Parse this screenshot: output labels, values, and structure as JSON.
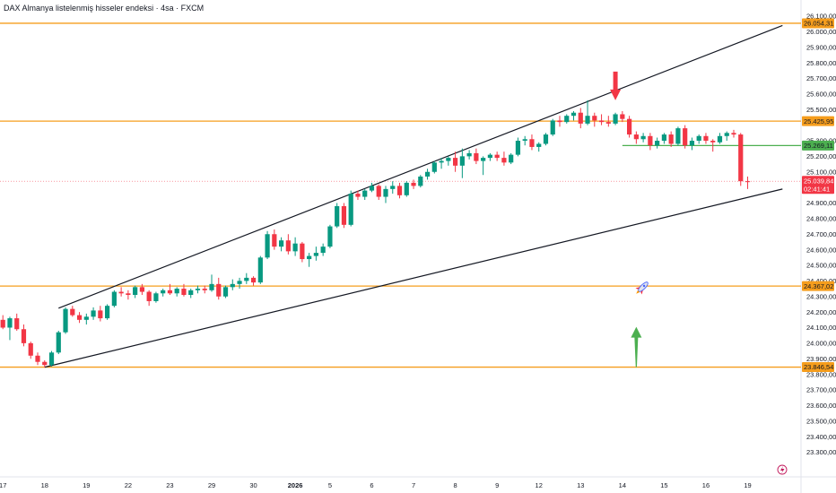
{
  "header": {
    "title": "DAX Almanya listelenmiş hisseler endeksi · 4sa · FXCM"
  },
  "chart_data": {
    "type": "candlestick",
    "title": "DAX Almanya listelenmiş hisseler endeksi · 4sa · FXCM",
    "ylim": [
      23270,
      26120
    ],
    "y_ticks": [
      {
        "v": 26100,
        "label": "26.100,00"
      },
      {
        "v": 26000,
        "label": "26.000,00"
      },
      {
        "v": 25900,
        "label": "25.900,00"
      },
      {
        "v": 25800,
        "label": "25.800,00"
      },
      {
        "v": 25700,
        "label": "25.700,00"
      },
      {
        "v": 25600,
        "label": "25.600,00"
      },
      {
        "v": 25500,
        "label": "25.500,00"
      },
      {
        "v": 25300,
        "label": "25.300,00"
      },
      {
        "v": 25200,
        "label": "25.200,00"
      },
      {
        "v": 25100,
        "label": "25.100,00"
      },
      {
        "v": 24900,
        "label": "24.900,00"
      },
      {
        "v": 24800,
        "label": "24.800,00"
      },
      {
        "v": 24700,
        "label": "24.700,00"
      },
      {
        "v": 24600,
        "label": "24.600,00"
      },
      {
        "v": 24500,
        "label": "24.500,00"
      },
      {
        "v": 24400,
        "label": "24.400,00"
      },
      {
        "v": 24300,
        "label": "24.300,00"
      },
      {
        "v": 24200,
        "label": "24.200,00"
      },
      {
        "v": 24100,
        "label": "24.100,00"
      },
      {
        "v": 24000,
        "label": "24.000,00"
      },
      {
        "v": 23900,
        "label": "23.900,00"
      },
      {
        "v": 23800,
        "label": "23.800,00"
      },
      {
        "v": 23700,
        "label": "23.700,00"
      },
      {
        "v": 23600,
        "label": "23.600,00"
      },
      {
        "v": 23500,
        "label": "23.500,00"
      },
      {
        "v": 23400,
        "label": "23.400,00"
      },
      {
        "v": 23300,
        "label": "23.300,00"
      }
    ],
    "x_ticks": [
      {
        "i": 0,
        "label": "17"
      },
      {
        "i": 6,
        "label": "18"
      },
      {
        "i": 12,
        "label": "19"
      },
      {
        "i": 18,
        "label": "22"
      },
      {
        "i": 24,
        "label": "23"
      },
      {
        "i": 30,
        "label": "29"
      },
      {
        "i": 36,
        "label": "30"
      },
      {
        "i": 42,
        "label": "2026",
        "bold": true
      },
      {
        "i": 47,
        "label": "5"
      },
      {
        "i": 53,
        "label": "6"
      },
      {
        "i": 59,
        "label": "7"
      },
      {
        "i": 65,
        "label": "8"
      },
      {
        "i": 71,
        "label": "9"
      },
      {
        "i": 77,
        "label": "12"
      },
      {
        "i": 83,
        "label": "13"
      },
      {
        "i": 89,
        "label": "14"
      },
      {
        "i": 95,
        "label": "15"
      },
      {
        "i": 101,
        "label": "16"
      },
      {
        "i": 107,
        "label": "19"
      }
    ],
    "levels": [
      {
        "price": 26054.31,
        "label": "26.054,31",
        "color": "#f59d1d"
      },
      {
        "price": 25425.95,
        "label": "25.425,95",
        "color": "#f59d1d"
      },
      {
        "price": 24367.02,
        "label": "24.367,02",
        "color": "#f59d1d"
      },
      {
        "price": 23846.54,
        "label": "23.846,54",
        "color": "#f59d1d"
      }
    ],
    "green_level": {
      "price": 25269.11,
      "label": "25.269,11",
      "color": "#4caf50",
      "from_i": 89
    },
    "current": {
      "price": 25039.84,
      "label": "25.039,84",
      "countdown": "02:41:41",
      "color": "#f23645"
    },
    "trendlines": [
      {
        "i1": 8,
        "p1": 24225,
        "i2": 112,
        "p2": 26040
      },
      {
        "i1": 6,
        "p1": 23846,
        "i2": 112,
        "p2": 24990
      }
    ],
    "arrows": [
      {
        "type": "down",
        "i": 88,
        "price": 25560,
        "color": "#f23645"
      },
      {
        "type": "up",
        "i": 91,
        "price": 23846,
        "color": "#4caf50"
      }
    ],
    "candles": [
      [
        24150,
        24180,
        24090,
        24100
      ],
      [
        24100,
        24170,
        24020,
        24160
      ],
      [
        24160,
        24190,
        24080,
        24090
      ],
      [
        24090,
        24120,
        23980,
        24000
      ],
      [
        24000,
        24010,
        23900,
        23920
      ],
      [
        23920,
        23940,
        23860,
        23880
      ],
      [
        23880,
        23890,
        23846,
        23860
      ],
      [
        23860,
        23950,
        23850,
        23940
      ],
      [
        23940,
        24080,
        23930,
        24070
      ],
      [
        24070,
        24230,
        24060,
        24220
      ],
      [
        24220,
        24240,
        24170,
        24180
      ],
      [
        24180,
        24200,
        24130,
        24150
      ],
      [
        24150,
        24190,
        24120,
        24170
      ],
      [
        24170,
        24230,
        24150,
        24210
      ],
      [
        24210,
        24240,
        24140,
        24160
      ],
      [
        24160,
        24250,
        24150,
        24240
      ],
      [
        24240,
        24340,
        24230,
        24330
      ],
      [
        24330,
        24360,
        24300,
        24320
      ],
      [
        24320,
        24340,
        24280,
        24310
      ],
      [
        24310,
        24370,
        24290,
        24360
      ],
      [
        24360,
        24380,
        24310,
        24330
      ],
      [
        24330,
        24340,
        24240,
        24270
      ],
      [
        24270,
        24330,
        24260,
        24320
      ],
      [
        24320,
        24350,
        24300,
        24340
      ],
      [
        24340,
        24380,
        24310,
        24320
      ],
      [
        24320,
        24360,
        24300,
        24350
      ],
      [
        24350,
        24380,
        24300,
        24310
      ],
      [
        24310,
        24350,
        24290,
        24340
      ],
      [
        24340,
        24370,
        24320,
        24350
      ],
      [
        24350,
        24370,
        24320,
        24340
      ],
      [
        24340,
        24440,
        24330,
        24380
      ],
      [
        24380,
        24420,
        24280,
        24300
      ],
      [
        24300,
        24370,
        24290,
        24360
      ],
      [
        24360,
        24410,
        24340,
        24380
      ],
      [
        24380,
        24420,
        24350,
        24400
      ],
      [
        24400,
        24450,
        24380,
        24420
      ],
      [
        24420,
        24430,
        24370,
        24390
      ],
      [
        24390,
        24560,
        24380,
        24550
      ],
      [
        24550,
        24720,
        24540,
        24700
      ],
      [
        24700,
        24730,
        24600,
        24620
      ],
      [
        24620,
        24680,
        24590,
        24660
      ],
      [
        24660,
        24700,
        24570,
        24590
      ],
      [
        24590,
        24680,
        24560,
        24640
      ],
      [
        24640,
        24650,
        24520,
        24540
      ],
      [
        24540,
        24580,
        24490,
        24560
      ],
      [
        24560,
        24620,
        24530,
        24580
      ],
      [
        24580,
        24640,
        24560,
        24620
      ],
      [
        24620,
        24760,
        24610,
        24750
      ],
      [
        24750,
        24900,
        24740,
        24880
      ],
      [
        24880,
        24900,
        24740,
        24760
      ],
      [
        24760,
        24980,
        24750,
        24960
      ],
      [
        24960,
        24980,
        24920,
        24940
      ],
      [
        24940,
        24990,
        24920,
        24980
      ],
      [
        24980,
        25030,
        24970,
        25010
      ],
      [
        25010,
        25020,
        24920,
        24940
      ],
      [
        24940,
        25010,
        24900,
        24990
      ],
      [
        24990,
        25040,
        24960,
        25010
      ],
      [
        25010,
        25030,
        24930,
        24950
      ],
      [
        24950,
        25040,
        24940,
        25030
      ],
      [
        25030,
        25050,
        24990,
        25010
      ],
      [
        25010,
        25080,
        25000,
        25070
      ],
      [
        25070,
        25120,
        25050,
        25100
      ],
      [
        25100,
        25170,
        25090,
        25160
      ],
      [
        25160,
        25190,
        25120,
        25170
      ],
      [
        25170,
        25200,
        25140,
        25190
      ],
      [
        25190,
        25230,
        25100,
        25140
      ],
      [
        25140,
        25250,
        25060,
        25200
      ],
      [
        25200,
        25240,
        25180,
        25220
      ],
      [
        25220,
        25250,
        25150,
        25170
      ],
      [
        25170,
        25200,
        25080,
        25190
      ],
      [
        25190,
        25220,
        25170,
        25210
      ],
      [
        25210,
        25230,
        25170,
        25190
      ],
      [
        25190,
        25230,
        25140,
        25160
      ],
      [
        25160,
        25220,
        25150,
        25210
      ],
      [
        25210,
        25320,
        25200,
        25300
      ],
      [
        25300,
        25330,
        25270,
        25310
      ],
      [
        25310,
        25340,
        25240,
        25260
      ],
      [
        25260,
        25290,
        25230,
        25280
      ],
      [
        25280,
        25350,
        25270,
        25340
      ],
      [
        25340,
        25440,
        25330,
        25430
      ],
      [
        25430,
        25460,
        25390,
        25420
      ],
      [
        25420,
        25470,
        25410,
        25460
      ],
      [
        25460,
        25490,
        25430,
        25480
      ],
      [
        25480,
        25510,
        25380,
        25410
      ],
      [
        25410,
        25560,
        25400,
        25460
      ],
      [
        25460,
        25480,
        25390,
        25430
      ],
      [
        25430,
        25470,
        25400,
        25420
      ],
      [
        25420,
        25460,
        25390,
        25410
      ],
      [
        25410,
        25480,
        25400,
        25470
      ],
      [
        25470,
        25490,
        25420,
        25440
      ],
      [
        25440,
        25460,
        25320,
        25340
      ],
      [
        25340,
        25360,
        25280,
        25310
      ],
      [
        25310,
        25350,
        25290,
        25330
      ],
      [
        25330,
        25350,
        25240,
        25270
      ],
      [
        25270,
        25320,
        25250,
        25300
      ],
      [
        25300,
        25350,
        25280,
        25340
      ],
      [
        25340,
        25360,
        25260,
        25280
      ],
      [
        25280,
        25390,
        25270,
        25380
      ],
      [
        25380,
        25400,
        25250,
        25270
      ],
      [
        25270,
        25320,
        25240,
        25300
      ],
      [
        25300,
        25340,
        25280,
        25330
      ],
      [
        25330,
        25350,
        25280,
        25300
      ],
      [
        25300,
        25310,
        25230,
        25290
      ],
      [
        25290,
        25350,
        25280,
        25330
      ],
      [
        25330,
        25360,
        25300,
        25350
      ],
      [
        25350,
        25370,
        25320,
        25340
      ],
      [
        25340,
        25350,
        25010,
        25040
      ],
      [
        25040,
        25070,
        24990,
        25039.84
      ]
    ]
  }
}
